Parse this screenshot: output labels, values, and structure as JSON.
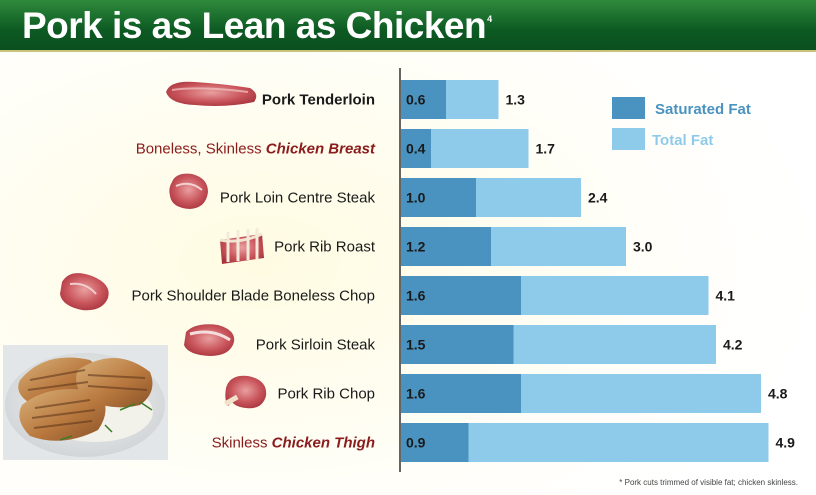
{
  "title": "Pork is as Lean as Chicken",
  "title_superscript": "4",
  "footnote": "* Pork cuts trimmed of visible fat; chicken skinless.",
  "chart_data": {
    "type": "bar",
    "orientation": "horizontal",
    "stacked": "overlay",
    "categories": [
      {
        "plain": "",
        "italic": "Pork Tenderloin",
        "style": "bold"
      },
      {
        "plain": "Boneless, Skinless ",
        "italic": "Chicken Breast",
        "style": "chicken"
      },
      {
        "plain": "Pork Loin Centre Steak",
        "italic": "",
        "style": "pork"
      },
      {
        "plain": "Pork Rib Roast",
        "italic": "",
        "style": "pork"
      },
      {
        "plain": "Pork Shoulder Blade Boneless Chop",
        "italic": "",
        "style": "pork"
      },
      {
        "plain": "Pork Sirloin Steak",
        "italic": "",
        "style": "pork"
      },
      {
        "plain": "Pork Rib Chop",
        "italic": "",
        "style": "pork"
      },
      {
        "plain": "Skinless ",
        "italic": "Chicken Thigh",
        "style": "chicken"
      }
    ],
    "series": [
      {
        "name": "Saturated Fat",
        "values": [
          0.6,
          0.4,
          1.0,
          1.2,
          1.6,
          1.5,
          1.6,
          0.9
        ],
        "labels": [
          "0.6",
          "0.4",
          "1.0",
          "1.2",
          "1.6",
          "1.5",
          "1.6",
          "0.9"
        ],
        "color": "#4a93c0"
      },
      {
        "name": "Total Fat",
        "values": [
          1.3,
          1.7,
          2.4,
          3.0,
          4.1,
          4.2,
          4.8,
          4.9
        ],
        "labels": [
          "1.3",
          "1.7",
          "2.4",
          "3.0",
          "4.1",
          "4.2",
          "4.8",
          "4.9"
        ],
        "color": "#8ecbea"
      }
    ],
    "xlim": [
      0,
      5.0
    ],
    "grid": false,
    "legend_position": "top-right",
    "category_label_color_pork": "#1a1a1a",
    "category_label_color_chicken": "#8a1c1c",
    "meat_icons": [
      "tenderloin-icon",
      "none",
      "loin-steak-icon",
      "rib-roast-icon",
      "shoulder-chop-icon",
      "sirloin-steak-icon",
      "rib-chop-icon",
      "none"
    ]
  }
}
